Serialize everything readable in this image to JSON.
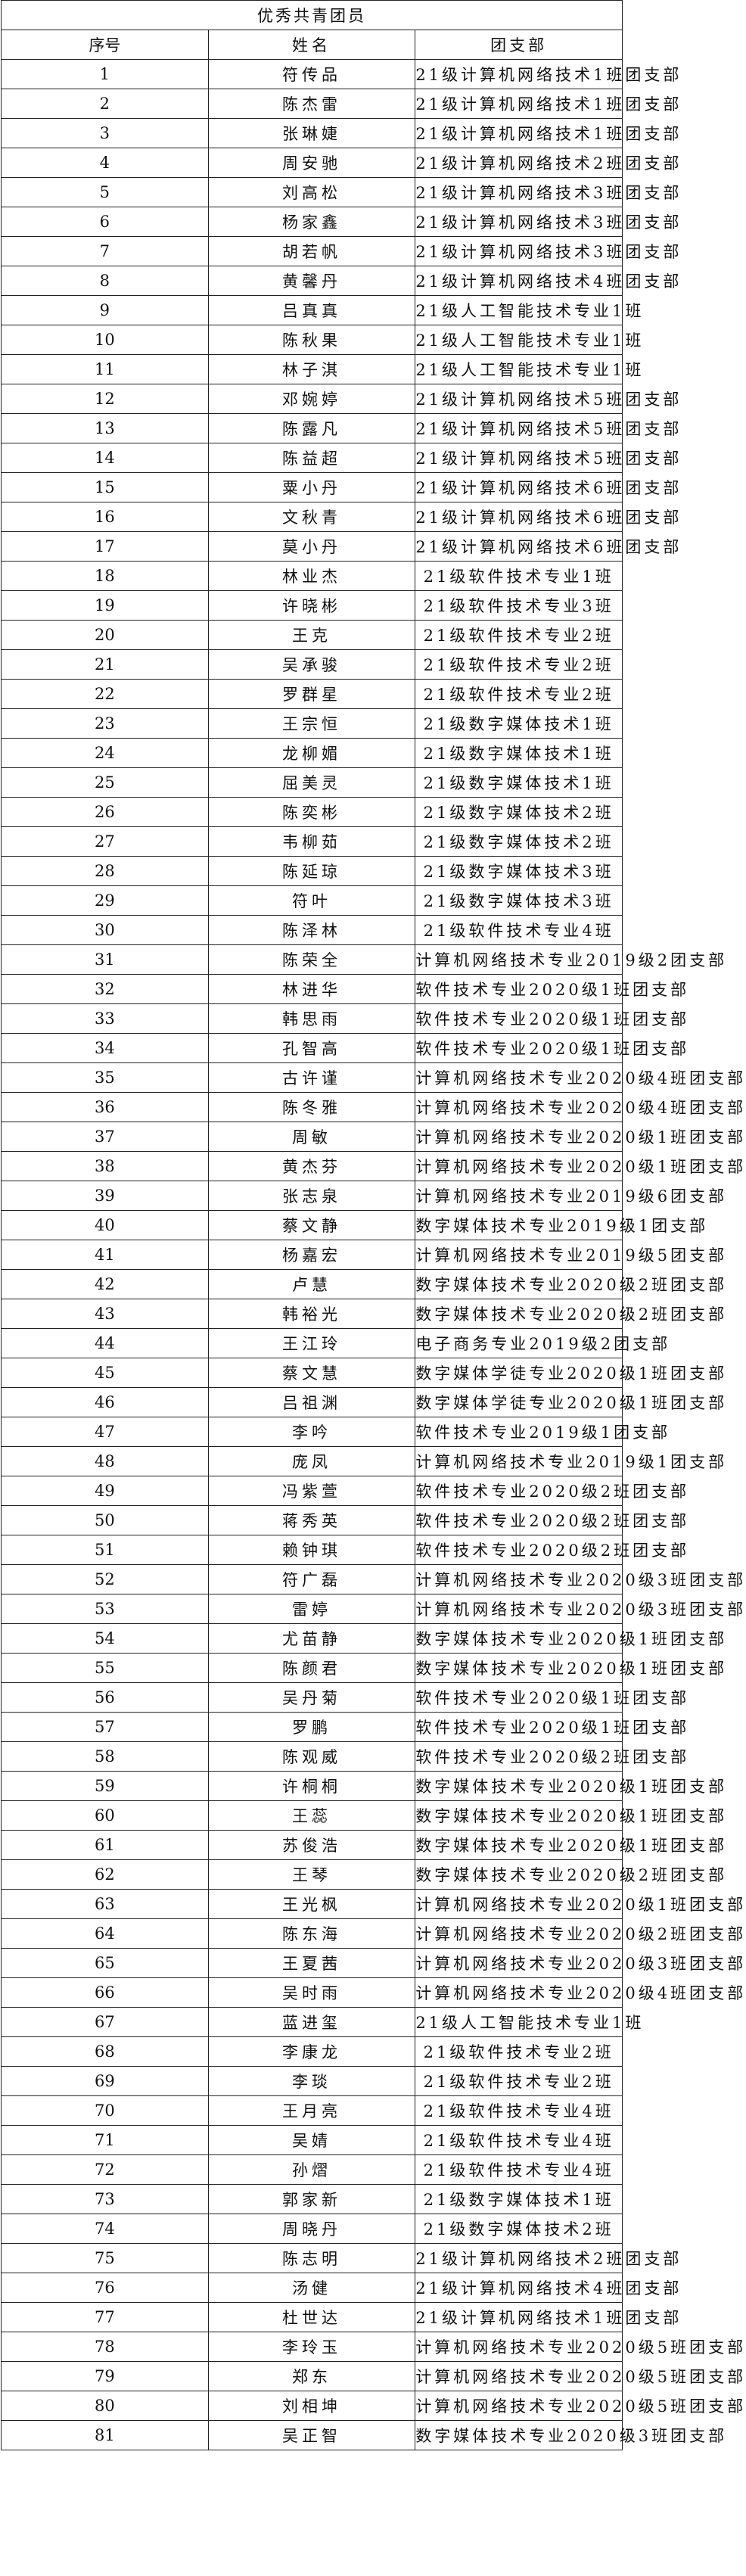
{
  "title": "优秀共青团员",
  "headers": {
    "seq": "序号",
    "name": "姓名",
    "branch": "团支部"
  },
  "rows": [
    [
      "1",
      "符传品",
      "21级计算机网络技术1班团支部"
    ],
    [
      "2",
      "陈杰雷",
      "21级计算机网络技术1班团支部"
    ],
    [
      "3",
      "张琳婕",
      "21级计算机网络技术1班团支部"
    ],
    [
      "4",
      "周安驰",
      "21级计算机网络技术2班团支部"
    ],
    [
      "5",
      "刘高松",
      "21级计算机网络技术3班团支部"
    ],
    [
      "6",
      "杨家鑫",
      "21级计算机网络技术3班团支部"
    ],
    [
      "7",
      "胡若帆",
      "21级计算机网络技术3班团支部"
    ],
    [
      "8",
      "黄馨丹",
      "21级计算机网络技术4班团支部"
    ],
    [
      "9",
      "吕真真",
      "21级人工智能技术专业1班"
    ],
    [
      "10",
      "陈秋果",
      "21级人工智能技术专业1班"
    ],
    [
      "11",
      "林子淇",
      "21级人工智能技术专业1班"
    ],
    [
      "12",
      "邓婉婷",
      "21级计算机网络技术5班团支部"
    ],
    [
      "13",
      "陈露凡",
      "21级计算机网络技术5班团支部"
    ],
    [
      "14",
      "陈益超",
      "21级计算机网络技术5班团支部"
    ],
    [
      "15",
      "粟小丹",
      "21级计算机网络技术6班团支部"
    ],
    [
      "16",
      "文秋青",
      "21级计算机网络技术6班团支部"
    ],
    [
      "17",
      "莫小丹",
      "21级计算机网络技术6班团支部"
    ],
    [
      "18",
      "林业杰",
      "21级软件技术专业1班"
    ],
    [
      "19",
      "许晓彬",
      "21级软件技术专业3班"
    ],
    [
      "20",
      "王克",
      "21级软件技术专业2班"
    ],
    [
      "21",
      "吴承骏",
      "21级软件技术专业2班"
    ],
    [
      "22",
      "罗群星",
      "21级软件技术专业2班"
    ],
    [
      "23",
      "王宗恒",
      "21级数字媒体技术1班"
    ],
    [
      "24",
      "龙柳媚",
      "21级数字媒体技术1班"
    ],
    [
      "25",
      "屈美灵",
      "21级数字媒体技术1班"
    ],
    [
      "26",
      "陈奕彬",
      "21级数字媒体技术2班"
    ],
    [
      "27",
      "韦柳茹",
      "21级数字媒体技术2班"
    ],
    [
      "28",
      "陈延琼",
      "21级数字媒体技术3班"
    ],
    [
      "29",
      "符叶",
      "21级数字媒体技术3班"
    ],
    [
      "30",
      "陈泽林",
      "21级软件技术专业4班"
    ],
    [
      "31",
      "陈荣全",
      "计算机网络技术专业2019级2团支部"
    ],
    [
      "32",
      "林进华",
      "软件技术专业2020级1班团支部"
    ],
    [
      "33",
      "韩思雨",
      "软件技术专业2020级1班团支部"
    ],
    [
      "34",
      "孔智高",
      "软件技术专业2020级1班团支部"
    ],
    [
      "35",
      "古许谨",
      "计算机网络技术专业2020级4班团支部"
    ],
    [
      "36",
      "陈冬雅",
      "计算机网络技术专业2020级4班团支部"
    ],
    [
      "37",
      "周敏",
      "计算机网络技术专业2020级1班团支部"
    ],
    [
      "38",
      "黄杰芬",
      "计算机网络技术专业2020级1班团支部"
    ],
    [
      "39",
      "张志泉",
      "计算机网络技术专业2019级6团支部"
    ],
    [
      "40",
      "蔡文静",
      "数字媒体技术专业2019级1团支部"
    ],
    [
      "41",
      "杨嘉宏",
      "计算机网络技术专业2019级5团支部"
    ],
    [
      "42",
      "卢慧",
      "数字媒体技术专业2020级2班团支部"
    ],
    [
      "43",
      "韩裕光",
      "数字媒体技术专业2020级2班团支部"
    ],
    [
      "44",
      "王江玲",
      "电子商务专业2019级2团支部"
    ],
    [
      "45",
      "蔡文慧",
      "数字媒体学徒专业2020级1班团支部"
    ],
    [
      "46",
      "吕祖渊",
      "数字媒体学徒专业2020级1班团支部"
    ],
    [
      "47",
      "李吟",
      "软件技术专业2019级1团支部"
    ],
    [
      "48",
      "庞凤",
      "计算机网络技术专业2019级1团支部"
    ],
    [
      "49",
      "冯紫萱",
      "软件技术专业2020级2班团支部"
    ],
    [
      "50",
      "蒋秀英",
      "软件技术专业2020级2班团支部"
    ],
    [
      "51",
      "赖钟琪",
      "软件技术专业2020级2班团支部"
    ],
    [
      "52",
      "符广磊",
      "计算机网络技术专业2020级3班团支部"
    ],
    [
      "53",
      "雷婷",
      "计算机网络技术专业2020级3班团支部"
    ],
    [
      "54",
      "尤苗静",
      "数字媒体技术专业2020级1班团支部"
    ],
    [
      "55",
      "陈颜君",
      "数字媒体技术专业2020级1班团支部"
    ],
    [
      "56",
      "吴丹菊",
      "软件技术专业2020级1班团支部"
    ],
    [
      "57",
      "罗鹏",
      "软件技术专业2020级1班团支部"
    ],
    [
      "58",
      "陈观威",
      "软件技术专业2020级2班团支部"
    ],
    [
      "59",
      "许桐桐",
      "数字媒体技术专业2020级1班团支部"
    ],
    [
      "60",
      "王蕊",
      "数字媒体技术专业2020级1班团支部"
    ],
    [
      "61",
      "苏俊浩",
      "数字媒体技术专业2020级1班团支部"
    ],
    [
      "62",
      "王琴",
      "数字媒体技术专业2020级2班团支部"
    ],
    [
      "63",
      "王光枫",
      "计算机网络技术专业2020级1班团支部"
    ],
    [
      "64",
      "陈东海",
      "计算机网络技术专业2020级2班团支部"
    ],
    [
      "65",
      "王夏茜",
      "计算机网络技术专业2020级3班团支部"
    ],
    [
      "66",
      "吴时雨",
      "计算机网络技术专业2020级4班团支部"
    ],
    [
      "67",
      "蓝进玺",
      "21级人工智能技术专业1班"
    ],
    [
      "68",
      "李康龙",
      "21级软件技术专业2班"
    ],
    [
      "69",
      "李琰",
      "21级软件技术专业2班"
    ],
    [
      "70",
      "王月亮",
      "21级软件技术专业4班"
    ],
    [
      "71",
      "吴婧",
      "21级软件技术专业4班"
    ],
    [
      "72",
      "孙熠",
      "21级软件技术专业4班"
    ],
    [
      "73",
      "郭家新",
      "21级数字媒体技术1班"
    ],
    [
      "74",
      "周晓丹",
      "21级数字媒体技术2班"
    ],
    [
      "75",
      "陈志明",
      "21级计算机网络技术2班团支部"
    ],
    [
      "76",
      "汤健",
      "21级计算机网络技术4班团支部"
    ],
    [
      "77",
      "杜世达",
      "21级计算机网络技术1班团支部"
    ],
    [
      "78",
      "李玲玉",
      "计算机网络技术专业2020级5班团支部"
    ],
    [
      "79",
      "郑东",
      "计算机网络技术专业2020级5班团支部"
    ],
    [
      "80",
      "刘相坤",
      "计算机网络技术专业2020级5班团支部"
    ],
    [
      "81",
      "吴正智",
      "数字媒体技术专业2020级3班团支部"
    ]
  ]
}
